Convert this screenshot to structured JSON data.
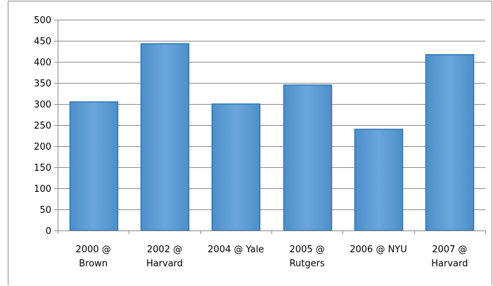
{
  "chart_data": {
    "type": "bar",
    "title": "",
    "xlabel": "",
    "ylabel": "",
    "categories": [
      [
        "2000 @",
        "Brown"
      ],
      [
        "2002 @",
        "Harvard"
      ],
      [
        "2004 @ Yale"
      ],
      [
        "2005 @",
        "Rutgers"
      ],
      [
        "2006 @ NYU"
      ],
      [
        "2007 @",
        "Harvard"
      ]
    ],
    "values": [
      305,
      443,
      300,
      345,
      240,
      417
    ],
    "ylim": [
      0,
      500
    ],
    "yticks": [
      0,
      50,
      100,
      150,
      200,
      250,
      300,
      350,
      400,
      450,
      500
    ],
    "grid": true,
    "legend": "none",
    "colors": {
      "bar_fill": "#5b9bd5",
      "bar_stroke": "#2e75b6",
      "grid": "#8c8c8c",
      "axis": "#8c8c8c"
    }
  }
}
